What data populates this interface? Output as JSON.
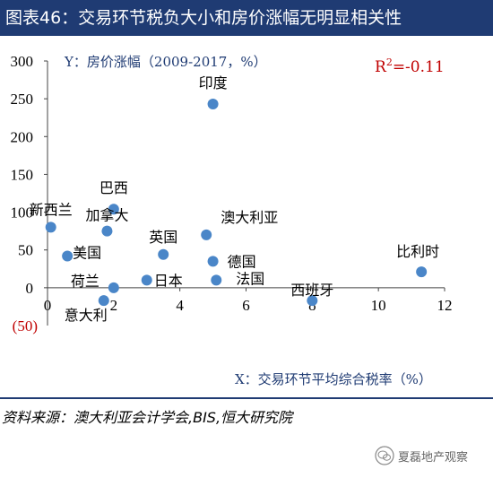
{
  "header": {
    "title": "图表46：交易环节税负大小和房价涨幅无明显相关性"
  },
  "chart_data": {
    "type": "scatter",
    "ylabel": "Y：房价涨幅（2009-2017，%）",
    "xlabel": "X：交易环节平均综合税率（%）",
    "annotation": "R²=-0.11",
    "xlim": [
      0,
      12
    ],
    "ylim": [
      -50,
      300
    ],
    "x_ticks": [
      0,
      2,
      4,
      6,
      8,
      10,
      12
    ],
    "y_ticks": [
      300,
      250,
      200,
      150,
      100,
      50,
      0
    ],
    "y_tick_labels": [
      "300",
      "250",
      "200",
      "150",
      "100",
      "50",
      "0"
    ],
    "y_extra_label": "(50)",
    "grid": false,
    "point_color": "#4a86c8",
    "points": [
      {
        "name": "印度",
        "x": 5.0,
        "y": 243
      },
      {
        "name": "巴西",
        "x": 2.0,
        "y": 104
      },
      {
        "name": "新西兰",
        "x": 0.1,
        "y": 80
      },
      {
        "name": "加拿大",
        "x": 1.8,
        "y": 75
      },
      {
        "name": "澳大利亚",
        "x": 4.8,
        "y": 70
      },
      {
        "name": "英国",
        "x": 3.5,
        "y": 44
      },
      {
        "name": "美国",
        "x": 0.6,
        "y": 42
      },
      {
        "name": "德国",
        "x": 5.0,
        "y": 35
      },
      {
        "name": "比利时",
        "x": 11.3,
        "y": 21
      },
      {
        "name": "法国",
        "x": 5.1,
        "y": 10
      },
      {
        "name": "日本",
        "x": 3.0,
        "y": 10
      },
      {
        "name": "荷兰",
        "x": 2.0,
        "y": 0
      },
      {
        "name": "意大利",
        "x": 1.7,
        "y": -17
      },
      {
        "name": "西班牙",
        "x": 8.0,
        "y": -17
      }
    ]
  },
  "footer": {
    "source": "资料来源：澳大利亚会计学会,BIS,恒大研究院",
    "watermark": "夏磊地产观察"
  }
}
